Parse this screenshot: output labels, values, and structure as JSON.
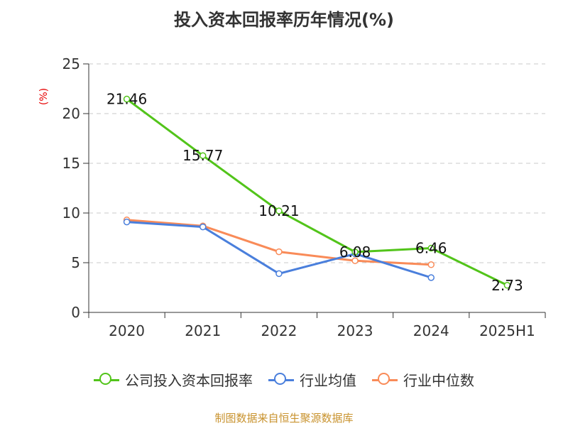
{
  "title": "投入资本回报率历年情况(%)",
  "unit_label": "(%)",
  "source": "制图数据来自恒生聚源数据库",
  "legend": [
    {
      "label": "公司投入资本回报率",
      "color": "#52c41a"
    },
    {
      "label": "行业均值",
      "color": "#4a7fdc"
    },
    {
      "label": "行业中位数",
      "color": "#f98b58"
    }
  ],
  "chart_data": {
    "type": "line",
    "categories": [
      "2020",
      "2021",
      "2022",
      "2023",
      "2024",
      "2025H1"
    ],
    "ylim": [
      0,
      25
    ],
    "yticks": [
      0,
      5,
      10,
      15,
      20,
      25
    ],
    "grid": true,
    "legend_position": "bottom",
    "series": [
      {
        "name": "公司投入资本回报率",
        "color": "#52c41a",
        "values": [
          21.46,
          15.77,
          10.21,
          6.08,
          6.46,
          2.73
        ],
        "labels": [
          "21.46",
          "15.77",
          "10.21",
          "6.08",
          "6.46",
          "2.73"
        ]
      },
      {
        "name": "行业均值",
        "color": "#4a7fdc",
        "values": [
          9.1,
          8.6,
          3.9,
          5.9,
          3.5,
          null
        ]
      },
      {
        "name": "行业中位数",
        "color": "#f98b58",
        "values": [
          9.3,
          8.7,
          6.1,
          5.2,
          4.8,
          null
        ]
      }
    ]
  }
}
